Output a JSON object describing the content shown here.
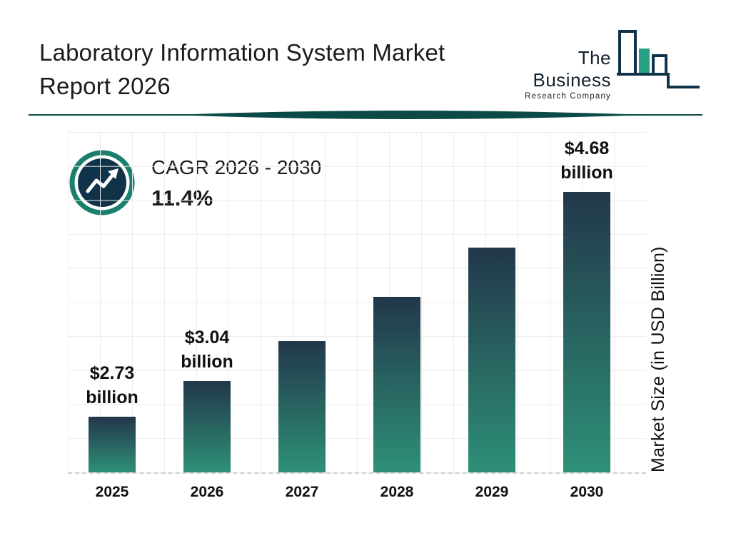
{
  "header": {
    "title_line1": "Laboratory Information System Market",
    "title_line2": "Report 2026"
  },
  "logo": {
    "line1": "The Business",
    "line2": "Research Company"
  },
  "cagr": {
    "label": "CAGR 2026 - 2030",
    "value": "11.4%"
  },
  "chart_data": {
    "type": "bar",
    "title": "Laboratory Information System Market Report 2026",
    "categories": [
      "2025",
      "2026",
      "2027",
      "2028",
      "2029",
      "2030"
    ],
    "values": [
      2.73,
      3.04,
      3.39,
      3.77,
      4.2,
      4.68
    ],
    "labeled_points": {
      "2025": {
        "line1": "$2.73",
        "line2": "billion"
      },
      "2026": {
        "line1": "$3.04",
        "line2": "billion"
      },
      "2030": {
        "line1": "$4.68",
        "line2": "billion"
      }
    },
    "cagr_2026_2030": "11.4%",
    "xlabel": "",
    "ylabel": "Market Size (in USD Billion)",
    "unit": "USD Billion",
    "ylim_display": [
      2.25,
      5.2
    ],
    "grid": true,
    "legend": false,
    "colors": {
      "bar_gradient_top": "#22374a",
      "bar_gradient_bottom": "#2e9077"
    }
  },
  "colors": {
    "accent_teal": "#1c7f6e",
    "logo_teal": "#2aa187",
    "dark_navy": "#113349",
    "divider_teal": "#0b4a46",
    "grid_line": "#ececec"
  }
}
